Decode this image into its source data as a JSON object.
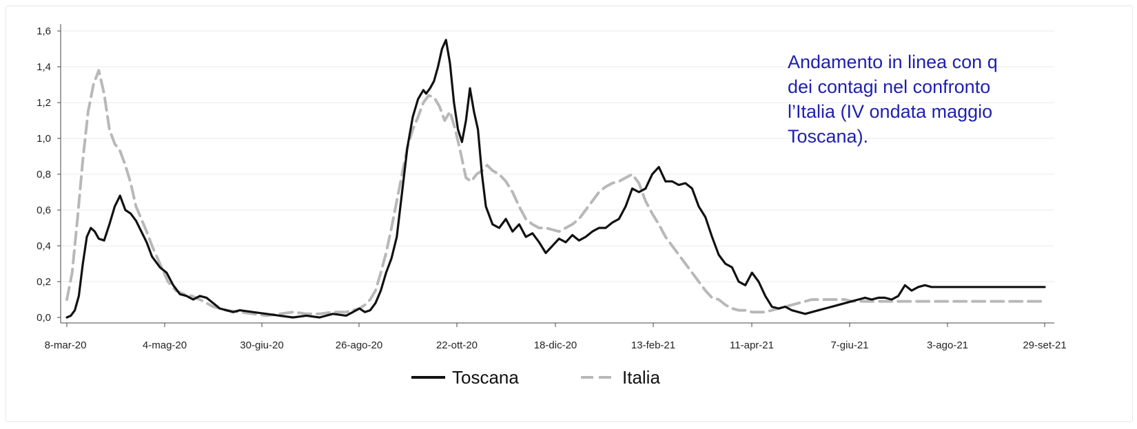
{
  "chart_data": {
    "type": "line",
    "title": "",
    "xlabel": "",
    "ylabel": "",
    "ylim": [
      0,
      1.6
    ],
    "y_ticks": [
      "0,0",
      "0,2",
      "0,4",
      "0,6",
      "0,8",
      "1,0",
      "1,2",
      "1,4",
      "1,6"
    ],
    "x_ticks": [
      "8-mar-20",
      "4-mag-20",
      "30-giu-20",
      "26-ago-20",
      "22-ott-20",
      "18-dic-20",
      "13-feb-21",
      "11-apr-21",
      "7-giu-21",
      "3-ago-21",
      "29-set-21"
    ],
    "grid": "horizontal",
    "legend_position": "bottom",
    "series": [
      {
        "name": "Toscana",
        "color": "#111111",
        "style": "solid",
        "x": [
          0,
          3,
          6,
          9,
          12,
          15,
          18,
          21,
          24,
          28,
          32,
          36,
          40,
          44,
          48,
          52,
          56,
          60,
          64,
          70,
          75,
          80,
          85,
          90,
          95,
          100,
          105,
          110,
          115,
          120,
          125,
          130,
          140,
          150,
          160,
          170,
          180,
          190,
          200,
          210,
          215,
          220,
          224,
          228,
          232,
          236,
          240,
          244,
          248,
          252,
          256,
          260,
          264,
          268,
          270,
          273,
          276,
          279,
          282,
          285,
          288,
          291,
          294,
          297,
          300,
          303,
          306,
          309,
          312,
          315,
          320,
          325,
          330,
          335,
          340,
          345,
          350,
          355,
          360,
          365,
          370,
          375,
          380,
          385,
          390,
          395,
          400,
          405,
          410,
          415,
          420,
          425,
          430,
          435,
          440,
          445,
          450,
          455,
          460,
          465,
          470,
          475,
          480,
          485,
          490,
          495,
          500,
          505,
          510,
          515,
          520,
          525,
          530,
          535,
          540,
          545,
          550,
          555,
          560,
          565,
          570,
          575,
          580,
          585,
          590,
          595,
          600,
          605,
          610,
          615,
          620,
          625,
          630,
          635,
          640,
          645,
          650,
          655,
          660,
          665,
          670,
          675,
          680,
          685,
          690,
          695,
          700,
          705,
          710,
          715,
          720,
          725,
          730,
          735
        ],
        "values": [
          0.0,
          0.01,
          0.04,
          0.12,
          0.3,
          0.45,
          0.5,
          0.48,
          0.44,
          0.43,
          0.52,
          0.62,
          0.68,
          0.6,
          0.58,
          0.54,
          0.48,
          0.42,
          0.34,
          0.28,
          0.25,
          0.18,
          0.13,
          0.12,
          0.1,
          0.12,
          0.11,
          0.08,
          0.05,
          0.04,
          0.03,
          0.04,
          0.03,
          0.02,
          0.01,
          0.0,
          0.01,
          0.0,
          0.02,
          0.01,
          0.03,
          0.05,
          0.03,
          0.04,
          0.08,
          0.15,
          0.25,
          0.33,
          0.45,
          0.7,
          0.95,
          1.12,
          1.22,
          1.27,
          1.25,
          1.28,
          1.32,
          1.4,
          1.5,
          1.55,
          1.42,
          1.2,
          1.05,
          0.98,
          1.1,
          1.28,
          1.15,
          1.05,
          0.8,
          0.62,
          0.52,
          0.5,
          0.55,
          0.48,
          0.52,
          0.45,
          0.47,
          0.42,
          0.36,
          0.4,
          0.44,
          0.42,
          0.46,
          0.43,
          0.45,
          0.48,
          0.5,
          0.5,
          0.53,
          0.55,
          0.62,
          0.72,
          0.7,
          0.72,
          0.8,
          0.84,
          0.76,
          0.76,
          0.74,
          0.75,
          0.72,
          0.62,
          0.56,
          0.45,
          0.35,
          0.3,
          0.28,
          0.2,
          0.18,
          0.25,
          0.2,
          0.12,
          0.06,
          0.05,
          0.06,
          0.04,
          0.03,
          0.02,
          0.03,
          0.04,
          0.05,
          0.06,
          0.07,
          0.08,
          0.09,
          0.1,
          0.11,
          0.1,
          0.11,
          0.11,
          0.1,
          0.12,
          0.18,
          0.15,
          0.17,
          0.18,
          0.17,
          0.17,
          0.17,
          0.17,
          0.17,
          0.17,
          0.17,
          0.17,
          0.17,
          0.17,
          0.17,
          0.17,
          0.17,
          0.17,
          0.17,
          0.17,
          0.17,
          0.17
        ]
      },
      {
        "name": "Italia",
        "color": "#b8b8b8",
        "style": "dashed",
        "x": [
          0,
          4,
          8,
          12,
          16,
          20,
          24,
          28,
          32,
          36,
          40,
          44,
          48,
          52,
          56,
          60,
          64,
          70,
          76,
          82,
          88,
          94,
          100,
          110,
          120,
          130,
          140,
          150,
          160,
          170,
          180,
          190,
          200,
          210,
          220,
          224,
          228,
          232,
          236,
          240,
          244,
          248,
          252,
          256,
          260,
          264,
          268,
          272,
          276,
          280,
          284,
          288,
          292,
          296,
          300,
          304,
          308,
          312,
          316,
          320,
          325,
          330,
          335,
          340,
          345,
          350,
          355,
          360,
          365,
          370,
          375,
          380,
          385,
          390,
          395,
          400,
          405,
          410,
          415,
          420,
          425,
          430,
          435,
          440,
          445,
          450,
          455,
          460,
          465,
          470,
          475,
          480,
          485,
          490,
          495,
          500,
          505,
          510,
          515,
          520,
          525,
          530,
          535,
          540,
          545,
          550,
          555,
          560,
          565,
          570,
          575,
          580,
          585,
          590,
          595,
          600,
          605,
          610,
          615,
          620,
          625,
          630,
          635,
          640,
          645,
          650,
          655,
          660,
          665,
          670,
          675,
          680,
          685,
          690,
          695,
          700,
          705,
          710,
          715,
          720,
          725,
          730,
          735
        ],
        "values": [
          0.1,
          0.25,
          0.55,
          0.88,
          1.15,
          1.3,
          1.38,
          1.25,
          1.05,
          0.97,
          0.93,
          0.85,
          0.75,
          0.62,
          0.55,
          0.48,
          0.4,
          0.3,
          0.2,
          0.15,
          0.13,
          0.12,
          0.1,
          0.06,
          0.04,
          0.03,
          0.02,
          0.01,
          0.02,
          0.03,
          0.02,
          0.02,
          0.03,
          0.03,
          0.05,
          0.07,
          0.1,
          0.15,
          0.25,
          0.36,
          0.5,
          0.65,
          0.8,
          0.95,
          1.05,
          1.12,
          1.2,
          1.24,
          1.23,
          1.18,
          1.1,
          1.15,
          1.05,
          0.92,
          0.78,
          0.76,
          0.8,
          0.82,
          0.85,
          0.82,
          0.8,
          0.76,
          0.7,
          0.62,
          0.55,
          0.52,
          0.5,
          0.5,
          0.49,
          0.48,
          0.5,
          0.52,
          0.55,
          0.6,
          0.65,
          0.7,
          0.73,
          0.75,
          0.76,
          0.78,
          0.8,
          0.75,
          0.65,
          0.58,
          0.52,
          0.45,
          0.4,
          0.35,
          0.3,
          0.25,
          0.2,
          0.15,
          0.11,
          0.1,
          0.07,
          0.05,
          0.04,
          0.04,
          0.03,
          0.03,
          0.03,
          0.04,
          0.05,
          0.06,
          0.07,
          0.08,
          0.09,
          0.1,
          0.1,
          0.1,
          0.1,
          0.1,
          0.1,
          0.09,
          0.09,
          0.09,
          0.09,
          0.09,
          0.09,
          0.09,
          0.09,
          0.09,
          0.09,
          0.09,
          0.09,
          0.09,
          0.09,
          0.09,
          0.09,
          0.09,
          0.09,
          0.09,
          0.09,
          0.09,
          0.09,
          0.09,
          0.09,
          0.09,
          0.09,
          0.09,
          0.09,
          0.09,
          0.09
        ]
      }
    ]
  },
  "legend": {
    "toscana_label": "Toscana",
    "italia_label": "Italia"
  },
  "annotation": {
    "lines": [
      "Andamento in linea con q",
      "dei  contagi  nel  confronto",
      "l’Italia  (IV  ondata  maggio",
      "Toscana)."
    ]
  }
}
